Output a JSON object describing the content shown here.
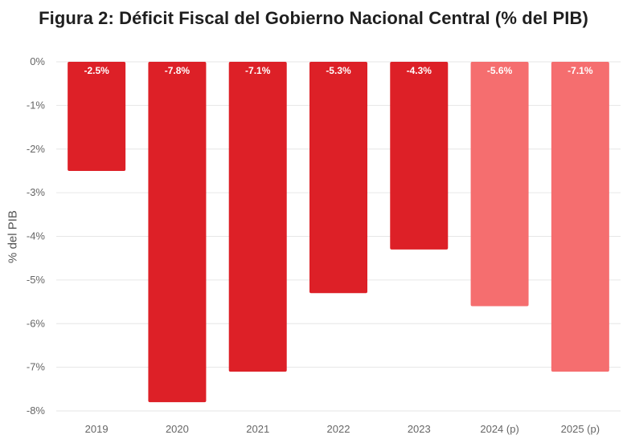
{
  "chart_data": {
    "type": "bar",
    "title": "Figura 2: Déficit Fiscal del Gobierno Nacional Central (% del PIB)",
    "ylabel": "% del PIB",
    "xlabel": "",
    "categories": [
      "2019",
      "2020",
      "2021",
      "2022",
      "2023",
      "2024 (p)",
      "2025 (p)"
    ],
    "values": [
      -2.5,
      -7.8,
      -7.1,
      -5.3,
      -4.3,
      -5.6,
      -7.1
    ],
    "data_labels": [
      "-2.5%",
      "-7.8%",
      "-7.1%",
      "-5.3%",
      "-4.3%",
      "-5.6%",
      "-7.1%"
    ],
    "projected": [
      false,
      false,
      false,
      false,
      false,
      true,
      true
    ],
    "ylim": [
      -8,
      0
    ],
    "yticks": [
      0,
      -1,
      -2,
      -3,
      -4,
      -5,
      -6,
      -7,
      -8
    ],
    "ytick_labels": [
      "0%",
      "-1%",
      "-2%",
      "-3%",
      "-4%",
      "-5%",
      "-6%",
      "-7%",
      "-8%"
    ],
    "grid": true,
    "colors": {
      "actual": "#dd2027",
      "projected": "#f56e6f",
      "grid": "#e6e6e6"
    }
  }
}
